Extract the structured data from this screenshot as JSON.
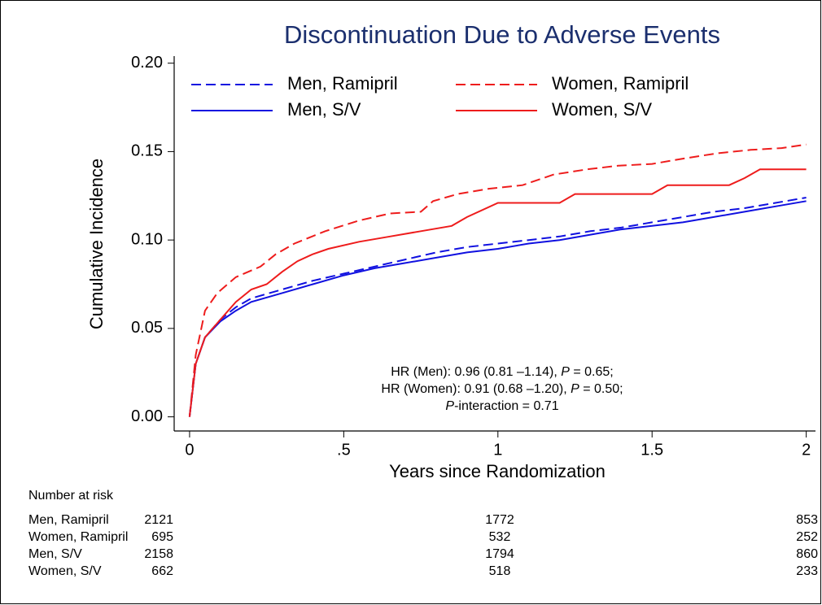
{
  "chart_data": {
    "type": "line",
    "title": "Discontinuation Due to Adverse Events",
    "x_label": "Years since Randomization",
    "y_label": "Cumulative Incidence",
    "xlim": [
      -0.05,
      2.03
    ],
    "ylim": [
      -0.008,
      0.204
    ],
    "xticks": [
      0,
      {
        "value": 0.5,
        "label": ".5"
      },
      1,
      1.5,
      2
    ],
    "yticks": [
      {
        "value": 0,
        "label": "0.00"
      },
      {
        "value": 0.05,
        "label": "0.05"
      },
      {
        "value": 0.1,
        "label": "0.10"
      },
      {
        "value": 0.15,
        "label": "0.15"
      },
      {
        "value": 0.2,
        "label": "0.20"
      }
    ],
    "series": [
      {
        "name": "Men, Ramipril",
        "color": "#1010e0",
        "dashed": true,
        "x": [
          0,
          0.02,
          0.05,
          0.1,
          0.15,
          0.2,
          0.3,
          0.4,
          0.5,
          0.6,
          0.7,
          0.8,
          0.9,
          1.0,
          1.1,
          1.2,
          1.3,
          1.4,
          1.5,
          1.6,
          1.7,
          1.8,
          1.9,
          2.0
        ],
        "values": [
          0,
          0.03,
          0.045,
          0.055,
          0.062,
          0.067,
          0.072,
          0.077,
          0.081,
          0.085,
          0.089,
          0.093,
          0.096,
          0.098,
          0.1,
          0.102,
          0.105,
          0.107,
          0.11,
          0.113,
          0.116,
          0.118,
          0.121,
          0.124
        ]
      },
      {
        "name": "Women, Ramipril",
        "color": "#ee1c1c",
        "dashed": true,
        "x": [
          0,
          0.02,
          0.05,
          0.09,
          0.15,
          0.23,
          0.28,
          0.34,
          0.44,
          0.55,
          0.65,
          0.75,
          0.79,
          0.87,
          0.97,
          1.08,
          1.18,
          1.29,
          1.39,
          1.5,
          1.6,
          1.71,
          1.82,
          1.92,
          2.0
        ],
        "values": [
          0,
          0.035,
          0.06,
          0.07,
          0.079,
          0.085,
          0.092,
          0.098,
          0.105,
          0.111,
          0.115,
          0.116,
          0.122,
          0.126,
          0.129,
          0.131,
          0.137,
          0.14,
          0.142,
          0.143,
          0.146,
          0.149,
          0.151,
          0.152,
          0.154
        ]
      },
      {
        "name": "Men, S/V",
        "color": "#1010e0",
        "dashed": false,
        "x": [
          0,
          0.02,
          0.05,
          0.1,
          0.15,
          0.2,
          0.3,
          0.4,
          0.5,
          0.6,
          0.7,
          0.8,
          0.9,
          1.0,
          1.1,
          1.2,
          1.3,
          1.4,
          1.5,
          1.6,
          1.7,
          1.8,
          1.9,
          2.0
        ],
        "values": [
          0,
          0.03,
          0.045,
          0.054,
          0.06,
          0.065,
          0.07,
          0.075,
          0.08,
          0.084,
          0.087,
          0.09,
          0.093,
          0.095,
          0.098,
          0.1,
          0.103,
          0.106,
          0.108,
          0.11,
          0.113,
          0.116,
          0.119,
          0.122
        ]
      },
      {
        "name": "Women, S/V",
        "color": "#ee1c1c",
        "dashed": false,
        "x": [
          0,
          0.02,
          0.05,
          0.1,
          0.15,
          0.2,
          0.25,
          0.3,
          0.35,
          0.4,
          0.45,
          0.55,
          0.65,
          0.75,
          0.85,
          0.9,
          1.0,
          1.2,
          1.25,
          1.5,
          1.55,
          1.75,
          1.8,
          1.85,
          2.0
        ],
        "values": [
          0,
          0.03,
          0.045,
          0.055,
          0.065,
          0.072,
          0.075,
          0.082,
          0.088,
          0.092,
          0.095,
          0.099,
          0.102,
          0.105,
          0.108,
          0.113,
          0.121,
          0.121,
          0.126,
          0.126,
          0.131,
          0.131,
          0.135,
          0.14,
          0.14
        ]
      }
    ],
    "annotation": [
      [
        {
          "text": "HR (Men): 0.96 (0.81 –1.14), ",
          "italic": false
        },
        {
          "text": "P",
          "italic": true
        },
        {
          "text": " = 0.65;",
          "italic": false
        }
      ],
      [
        {
          "text": "HR (Women): 0.91 (0.68 –1.20), ",
          "italic": false
        },
        {
          "text": "P",
          "italic": true
        },
        {
          "text": " = 0.50;",
          "italic": false
        }
      ],
      [
        {
          "text": "P",
          "italic": true
        },
        {
          "text": "-interaction = 0.71",
          "italic": false
        }
      ]
    ],
    "risk_table": {
      "title": "Number at risk",
      "rows": [
        {
          "name": "Men, Ramipril",
          "values": [
            2121,
            1772,
            853
          ]
        },
        {
          "name": "Women, Ramipril",
          "values": [
            695,
            532,
            252
          ]
        },
        {
          "name": "Men, S/V",
          "values": [
            2158,
            1794,
            860
          ]
        },
        {
          "name": "Women, S/V",
          "values": [
            662,
            518,
            233
          ]
        }
      ]
    }
  }
}
